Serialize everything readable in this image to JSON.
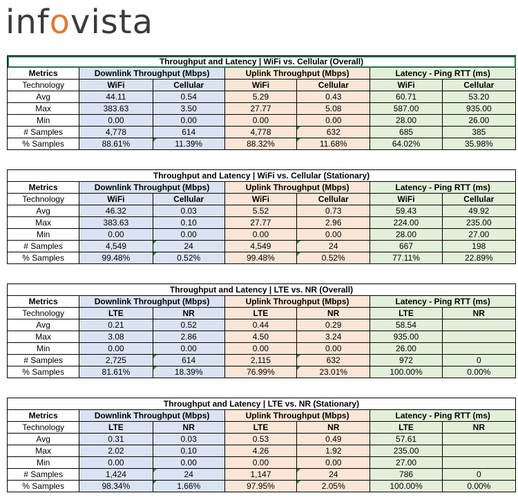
{
  "logo": {
    "text_pre": "inf",
    "text_dot": "o",
    "text_post": "vista"
  },
  "colors": {
    "downlink": "#dae3f3",
    "uplink": "#fbe5d6",
    "latency": "#e2f0d9",
    "logo_accent": "#e07a38"
  },
  "tables": [
    {
      "title": "Throughput and Latency | WiFi vs. Cellular (Overall)",
      "headers": {
        "metrics": "Metrics",
        "downlink": "Downlink Throughput (Mbps)",
        "uplink": "Uplink Throughput (Mbps)",
        "latency": "Latency - Ping RTT  (ms)"
      },
      "tech_label": "Technology",
      "techs": [
        "WiFi",
        "Cellular"
      ],
      "rows": [
        {
          "label": "Avg",
          "values": [
            "44.11",
            "0.54",
            "5.29",
            "0.43",
            "60.71",
            "53.20"
          ]
        },
        {
          "label": "Max",
          "values": [
            "383.63",
            "3.50",
            "27.77",
            "5.08",
            "587.00",
            "935.00"
          ]
        },
        {
          "label": "Min",
          "values": [
            "0.00",
            "0.00",
            "0.00",
            "0.00",
            "28.00",
            "26.00"
          ]
        },
        {
          "label": "# Samples",
          "values": [
            "4,778",
            "614",
            "4,778",
            "632",
            "685",
            "385"
          ]
        },
        {
          "label": "% Samples",
          "values": [
            "88.61%",
            "11.39%",
            "88.32%",
            "11.68%",
            "64.02%",
            "35.98%"
          ]
        }
      ]
    },
    {
      "title": "Throughput and Latency | WiFi vs. Cellular (Stationary)",
      "headers": {
        "metrics": "Metrics",
        "downlink": "Downlink Throughput (Mbps)",
        "uplink": "Uplink Throughput (Mbps)",
        "latency": "Latency - Ping RTT  (ms)"
      },
      "tech_label": "Technology",
      "techs": [
        "WiFi",
        "Cellular"
      ],
      "rows": [
        {
          "label": "Avg",
          "values": [
            "46.32",
            "0.03",
            "5.52",
            "0.73",
            "59.43",
            "49.92"
          ]
        },
        {
          "label": "Max",
          "values": [
            "383.63",
            "0.10",
            "27.77",
            "2.96",
            "224.00",
            "235.00"
          ]
        },
        {
          "label": "Min",
          "values": [
            "0.00",
            "0.00",
            "0.00",
            "0.00",
            "28.00",
            "27.00"
          ]
        },
        {
          "label": "# Samples",
          "values": [
            "4,549",
            "24",
            "4,549",
            "24",
            "667",
            "198"
          ]
        },
        {
          "label": "% Samples",
          "values": [
            "99.48%",
            "0.52%",
            "99.48%",
            "0.52%",
            "77.11%",
            "22.89%"
          ]
        }
      ]
    },
    {
      "title": "Throughput and Latency | LTE vs. NR (Overall)",
      "headers": {
        "metrics": "Metrics",
        "downlink": "Downlink Throughput (Mbps)",
        "uplink": "Uplink Throughput (Mbps)",
        "latency": "Latency - Ping RTT  (ms)"
      },
      "tech_label": "Technology",
      "techs": [
        "LTE",
        "NR"
      ],
      "rows": [
        {
          "label": "Avg",
          "values": [
            "0.21",
            "0.52",
            "0.44",
            "0.29",
            "58.54",
            ""
          ]
        },
        {
          "label": "Max",
          "values": [
            "3.08",
            "2.86",
            "4.50",
            "3.24",
            "935.00",
            ""
          ]
        },
        {
          "label": "Min",
          "values": [
            "0.00",
            "0.00",
            "0.00",
            "0.00",
            "26.00",
            ""
          ]
        },
        {
          "label": "# Samples",
          "values": [
            "2,725",
            "614",
            "2,115",
            "632",
            "972",
            "0"
          ]
        },
        {
          "label": "% Samples",
          "values": [
            "81.61%",
            "18.39%",
            "76.99%",
            "23.01%",
            "100.00%",
            "0.00%"
          ]
        }
      ]
    },
    {
      "title": "Throughput and Latency | LTE vs. NR (Stationary)",
      "headers": {
        "metrics": "Metrics",
        "downlink": "Downlink Throughput (Mbps)",
        "uplink": "Uplink Throughput (Mbps)",
        "latency": "Latency - Ping RTT  (ms)"
      },
      "tech_label": "Technology",
      "techs": [
        "LTE",
        "NR"
      ],
      "rows": [
        {
          "label": "Avg",
          "values": [
            "0.31",
            "0.03",
            "0.53",
            "0.49",
            "57.61",
            ""
          ]
        },
        {
          "label": "Max",
          "values": [
            "2.02",
            "0.10",
            "4.26",
            "1.92",
            "235.00",
            ""
          ]
        },
        {
          "label": "Min",
          "values": [
            "0.00",
            "0.00",
            "0.00",
            "0.00",
            "27.00",
            ""
          ]
        },
        {
          "label": "# Samples",
          "values": [
            "1,424",
            "24",
            "1,147",
            "24",
            "786",
            "0"
          ]
        },
        {
          "label": "% Samples",
          "values": [
            "98.34%",
            "1.66%",
            "97.95%",
            "2.05%",
            "100.00%",
            "0.00%"
          ]
        }
      ]
    }
  ]
}
